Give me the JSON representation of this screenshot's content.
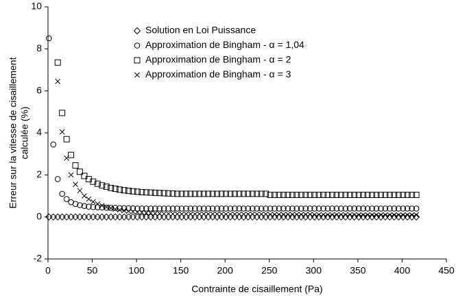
{
  "chart_data": {
    "type": "scatter",
    "xlabel": "Contrainte de cisaillement (Pa)",
    "ylabel": [
      "Erreur sur la vitesse de cisaillement",
      "calculée (%)"
    ],
    "xlim": [
      0,
      450
    ],
    "xticks": [
      0,
      50,
      100,
      150,
      200,
      250,
      300,
      350,
      400,
      450
    ],
    "ylim": [
      -2,
      10
    ],
    "yticks": [
      -2,
      0,
      2,
      4,
      6,
      8,
      10
    ],
    "grid": false,
    "legend": "top",
    "x": [
      1,
      6,
      11,
      16,
      21,
      26,
      31,
      36,
      41,
      46,
      51,
      56,
      61,
      66,
      71,
      76,
      81,
      86,
      91,
      96,
      101,
      106,
      111,
      116,
      121,
      126,
      131,
      136,
      141,
      146,
      151,
      156,
      161,
      166,
      171,
      176,
      181,
      186,
      191,
      196,
      201,
      206,
      211,
      216,
      221,
      226,
      231,
      236,
      241,
      246,
      251,
      256,
      261,
      266,
      271,
      276,
      281,
      286,
      291,
      296,
      301,
      306,
      311,
      316,
      321,
      326,
      331,
      336,
      341,
      346,
      351,
      356,
      361,
      366,
      371,
      376,
      381,
      386,
      391,
      396,
      401,
      406,
      411,
      416
    ],
    "series": [
      {
        "name": "Solution en Loi Puissance",
        "marker": "diamond",
        "color": "#000000",
        "values": [
          0,
          0,
          0,
          0,
          0,
          0,
          0,
          0,
          0,
          0,
          0,
          0,
          0,
          0,
          0,
          0,
          0,
          0,
          0,
          0,
          0,
          0,
          0,
          0,
          0,
          0,
          0,
          0,
          0,
          0,
          0,
          0,
          0,
          0,
          0,
          0,
          0,
          0,
          0,
          0,
          0,
          0,
          0,
          0,
          0,
          0,
          0,
          0,
          0,
          0,
          0,
          0,
          0,
          0,
          0,
          0,
          0,
          0,
          0,
          0,
          0,
          0,
          0,
          0,
          0,
          0,
          0,
          0,
          0,
          0,
          0,
          0,
          0,
          0,
          0,
          0,
          0,
          0,
          0,
          0,
          0,
          0,
          0,
          0
        ]
      },
      {
        "name": "Approximation de Bingham - α = 1,04",
        "marker": "circle",
        "color": "#000000",
        "values": [
          8.5,
          3.45,
          1.8,
          1.1,
          0.85,
          0.7,
          0.62,
          0.56,
          0.52,
          0.49,
          0.47,
          0.46,
          0.45,
          0.44,
          0.43,
          0.43,
          0.42,
          0.42,
          0.41,
          0.41,
          0.4,
          0.4,
          0.4,
          0.4,
          0.4,
          0.4,
          0.4,
          0.4,
          0.4,
          0.4,
          0.4,
          0.4,
          0.4,
          0.4,
          0.4,
          0.4,
          0.4,
          0.4,
          0.4,
          0.4,
          0.4,
          0.4,
          0.4,
          0.4,
          0.4,
          0.4,
          0.4,
          0.4,
          0.4,
          0.4,
          0.4,
          0.4,
          0.4,
          0.4,
          0.4,
          0.4,
          0.4,
          0.4,
          0.4,
          0.4,
          0.4,
          0.4,
          0.4,
          0.4,
          0.4,
          0.4,
          0.4,
          0.4,
          0.4,
          0.4,
          0.4,
          0.4,
          0.4,
          0.4,
          0.4,
          0.4,
          0.4,
          0.4,
          0.4,
          0.4,
          0.4,
          0.4,
          0.4,
          0.4
        ]
      },
      {
        "name": "Approximation de Bingham - α = 2",
        "marker": "square",
        "color": "#000000",
        "values": [
          null,
          null,
          7.35,
          4.95,
          3.7,
          2.95,
          2.45,
          2.15,
          1.95,
          1.8,
          1.68,
          1.58,
          1.5,
          1.44,
          1.38,
          1.34,
          1.3,
          1.27,
          1.24,
          1.22,
          1.2,
          1.18,
          1.17,
          1.16,
          1.15,
          1.14,
          1.13,
          1.12,
          1.11,
          1.1,
          1.1,
          1.1,
          1.1,
          1.1,
          1.1,
          1.1,
          1.1,
          1.1,
          1.1,
          1.1,
          1.1,
          1.1,
          1.1,
          1.1,
          1.1,
          1.1,
          1.1,
          1.1,
          1.1,
          1.1,
          1.05,
          1.05,
          1.05,
          1.05,
          1.05,
          1.05,
          1.05,
          1.05,
          1.05,
          1.05,
          1.05,
          1.05,
          1.05,
          1.05,
          1.05,
          1.05,
          1.05,
          1.05,
          1.05,
          1.05,
          1.05,
          1.05,
          1.05,
          1.05,
          1.05,
          1.05,
          1.05,
          1.05,
          1.05,
          1.05,
          1.05,
          1.05,
          1.05,
          1.05
        ]
      },
      {
        "name": "Approximation de Bingham - α = 3",
        "marker": "cross",
        "color": "#000000",
        "values": [
          null,
          null,
          6.45,
          4.05,
          2.8,
          2.0,
          1.55,
          1.25,
          1.0,
          0.85,
          0.72,
          0.62,
          0.54,
          0.47,
          0.42,
          0.37,
          0.33,
          0.3,
          0.27,
          0.25,
          0.23,
          0.21,
          0.19,
          0.18,
          0.17,
          0.16,
          0.15,
          0.15,
          0.15,
          0.14,
          0.14,
          0.14,
          0.14,
          0.14,
          0.14,
          0.14,
          0.14,
          0.14,
          0.14,
          0.14,
          0.13,
          0.13,
          0.13,
          0.13,
          0.13,
          0.13,
          0.13,
          0.13,
          0.13,
          0.13,
          0.12,
          0.12,
          0.12,
          0.12,
          0.12,
          0.12,
          0.12,
          0.12,
          0.12,
          0.12,
          0.11,
          0.11,
          0.11,
          0.11,
          0.11,
          0.11,
          0.11,
          0.11,
          0.11,
          0.11,
          0.1,
          0.1,
          0.1,
          0.1,
          0.1,
          0.1,
          0.1,
          0.1,
          0.1,
          0.1,
          0.1,
          0.1,
          0.1,
          0.1
        ]
      }
    ]
  }
}
